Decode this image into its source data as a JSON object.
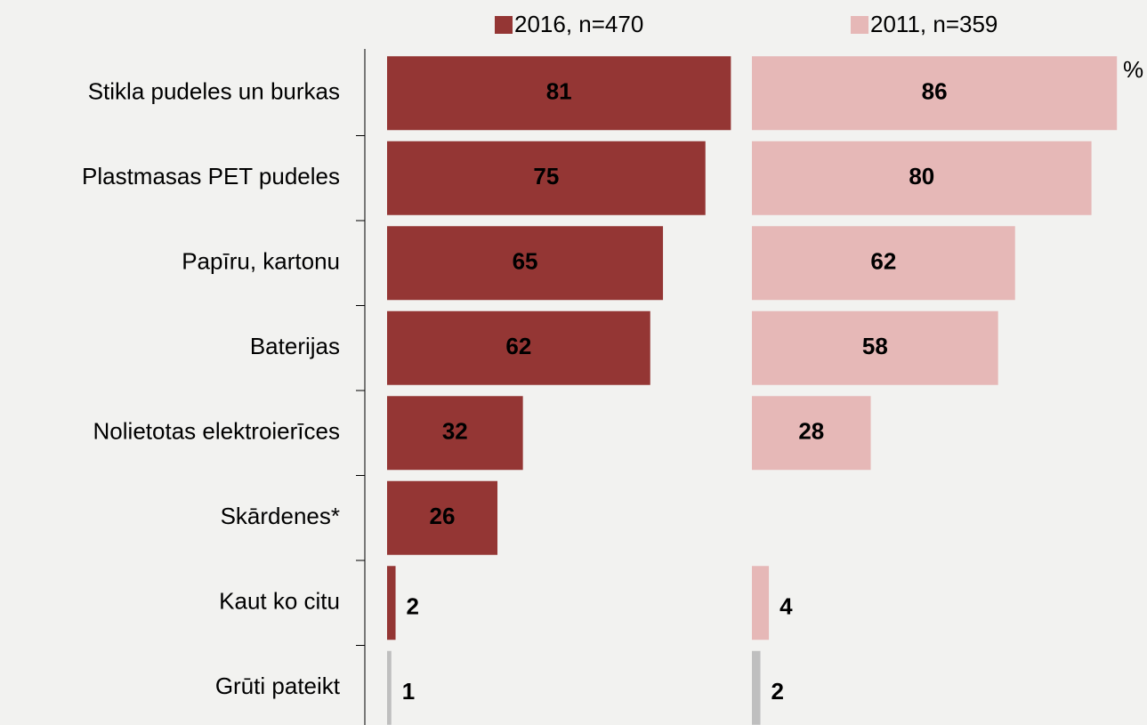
{
  "chart_data": {
    "type": "bar",
    "orientation": "horizontal",
    "annotation": "%",
    "categories": [
      "Stikla pudeles un burkas",
      "Plastmasas PET pudeles",
      "Papīru, kartonu",
      "Baterijas",
      "Nolietotas elektroierīces",
      "Skārdenes*",
      "Kaut ko citu",
      "Grūti pateikt"
    ],
    "series": [
      {
        "name": "2016, n=470",
        "color": "#943634",
        "label_color": "#ffffff",
        "colors": [
          "#943634",
          "#943634",
          "#943634",
          "#943634",
          "#943634",
          "#943634",
          "#943634",
          "#bfbfbf"
        ],
        "values": [
          81,
          75,
          65,
          62,
          32,
          26,
          2,
          1
        ]
      },
      {
        "name": "2011, n=359",
        "color": "#e6b8b7",
        "label_color": "#000000",
        "colors": [
          "#e6b8b7",
          "#e6b8b7",
          "#e6b8b7",
          "#e6b8b7",
          "#e6b8b7",
          "#e6b8b7",
          "#e6b8b7",
          "#bfbfbf"
        ],
        "values": [
          86,
          80,
          62,
          58,
          28,
          null,
          4,
          2
        ]
      }
    ]
  }
}
